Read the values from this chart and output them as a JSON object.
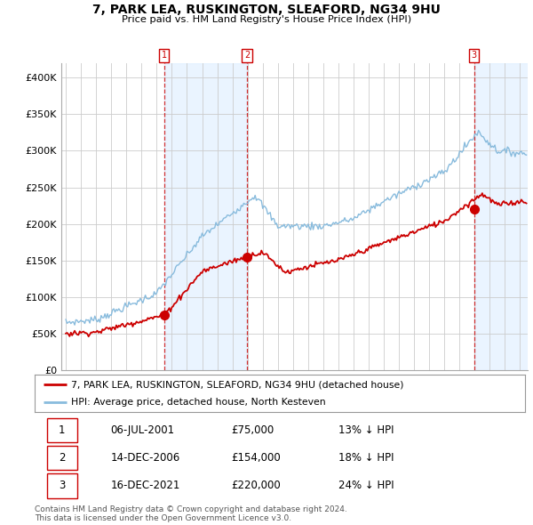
{
  "title": "7, PARK LEA, RUSKINGTON, SLEAFORD, NG34 9HU",
  "subtitle": "Price paid vs. HM Land Registry's House Price Index (HPI)",
  "ylim": [
    0,
    420000
  ],
  "yticks": [
    0,
    50000,
    100000,
    150000,
    200000,
    250000,
    300000,
    350000,
    400000
  ],
  "ytick_labels": [
    "£0",
    "£50K",
    "£100K",
    "£150K",
    "£200K",
    "£250K",
    "£300K",
    "£350K",
    "£400K"
  ],
  "legend_entries": [
    "7, PARK LEA, RUSKINGTON, SLEAFORD, NG34 9HU (detached house)",
    "HPI: Average price, detached house, North Kesteven"
  ],
  "legend_colors": [
    "#cc0000",
    "#88bbdd"
  ],
  "transaction_markers": [
    {
      "num": 1,
      "date": "06-JUL-2001",
      "price": 75000,
      "hpi_diff": "13% ↓ HPI",
      "x_year": 2001.5,
      "y": 75000
    },
    {
      "num": 2,
      "date": "14-DEC-2006",
      "price": 154000,
      "hpi_diff": "18% ↓ HPI",
      "x_year": 2006.96,
      "y": 154000
    },
    {
      "num": 3,
      "date": "16-DEC-2021",
      "price": 220000,
      "hpi_diff": "24% ↓ HPI",
      "x_year": 2021.96,
      "y": 220000
    }
  ],
  "vline_color": "#cc0000",
  "shade_color": "#ddeeff",
  "grid_color": "#cccccc",
  "background_color": "#ffffff",
  "table_rows": [
    [
      "1",
      "06-JUL-2001",
      "£75,000",
      "13% ↓ HPI"
    ],
    [
      "2",
      "14-DEC-2006",
      "£154,000",
      "18% ↓ HPI"
    ],
    [
      "3",
      "16-DEC-2021",
      "£220,000",
      "24% ↓ HPI"
    ]
  ],
  "footnote": "Contains HM Land Registry data © Crown copyright and database right 2024.\nThis data is licensed under the Open Government Licence v3.0.",
  "xlim_start": 1994.7,
  "xlim_end": 2025.5
}
